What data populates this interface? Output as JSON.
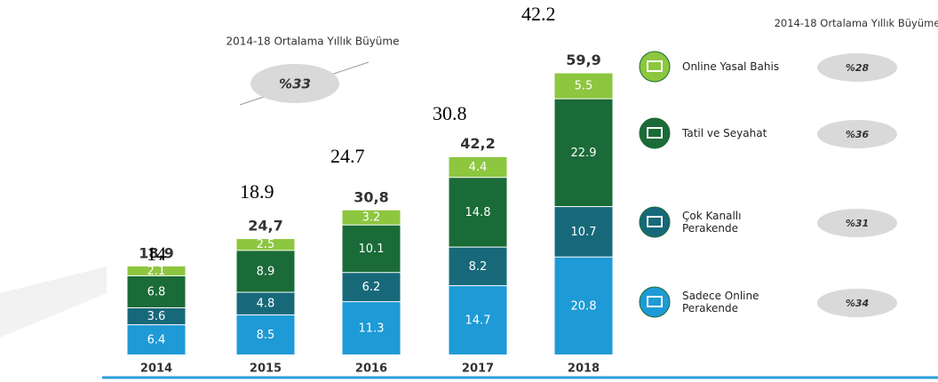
{
  "chart_data": {
    "type": "stacked_bar",
    "title": "2014-18 Ortalama Yıllık Büyüme",
    "overall_growth": "%33",
    "legend_title": "2014-18 Ortalama Yıllık Büyüme",
    "categories": [
      "2014",
      "2015",
      "2016",
      "2017",
      "2018"
    ],
    "series": [
      {
        "name": "Sadece Online Perakende",
        "color": "#1e9ad6",
        "values": [
          6.4,
          8.5,
          11.3,
          14.7,
          20.8
        ],
        "growth": "%34"
      },
      {
        "name": "Çok Kanallı Perakende",
        "color": "#17697a",
        "values": [
          3.6,
          4.8,
          6.2,
          8.2,
          10.7
        ],
        "growth": "%31"
      },
      {
        "name": "Tatil ve Seyahat",
        "color": "#1a6b37",
        "values": [
          6.8,
          8.9,
          10.1,
          14.8,
          22.9
        ],
        "growth": "%36"
      },
      {
        "name": "Online Yasal Bahis",
        "color": "#8dc63f",
        "values": [
          2.1,
          2.5,
          3.2,
          4.4,
          5.5
        ],
        "growth": "%28"
      }
    ],
    "totals": [
      18.9,
      24.7,
      30.8,
      42.2,
      59.9
    ],
    "total_labels": [
      "18,9",
      "24,7",
      "30,8",
      "42,2",
      "59,9"
    ],
    "annotations": [
      "14",
      "18.9",
      "24.7",
      "30.8",
      "42.2"
    ]
  }
}
